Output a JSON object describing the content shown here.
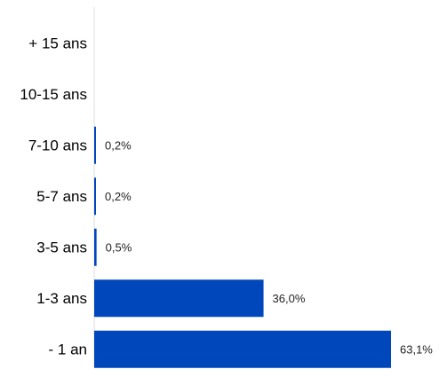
{
  "chart_data": {
    "type": "bar",
    "orientation": "horizontal",
    "categories": [
      "+ 15 ans",
      "10-15 ans",
      "7-10 ans",
      "5-7 ans",
      "3-5 ans",
      "1-3 ans",
      "- 1 an"
    ],
    "values": [
      0,
      0,
      0.2,
      0.2,
      0.5,
      36.0,
      63.1
    ],
    "value_labels": [
      "",
      "",
      "0,2%",
      "0,2%",
      "0,5%",
      "36,0%",
      "63,1%"
    ],
    "xlim": [
      0,
      63.1
    ],
    "bar_color": "#0047BB",
    "axis_color": "#DDDDDD",
    "grid": false,
    "legend": "none"
  }
}
